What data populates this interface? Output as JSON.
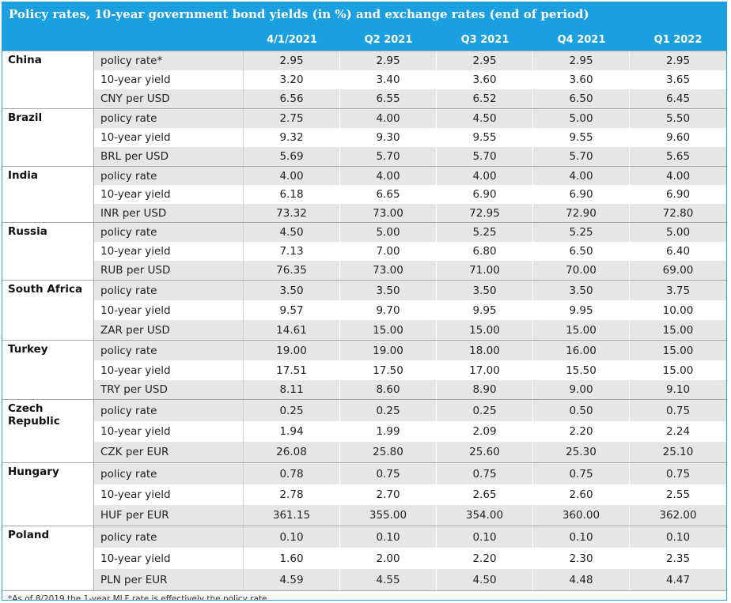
{
  "title": "Policy rates, 10-year government bond yields (in %) and exchange rates (end of period)",
  "columns": [
    "4/1/2021",
    "Q2 2021",
    "Q3 2021",
    "Q4 2021",
    "Q1 2022"
  ],
  "groups": [
    {
      "country": "China",
      "rows": [
        {
          "label": "policy rate*",
          "values": [
            "2.95",
            "2.95",
            "2.95",
            "2.95",
            "2.95"
          ]
        },
        {
          "label": "10-year yield",
          "values": [
            "3.20",
            "3.40",
            "3.60",
            "3.60",
            "3.65"
          ]
        },
        {
          "label": "CNY per USD",
          "values": [
            "6.56",
            "6.55",
            "6.52",
            "6.50",
            "6.45"
          ]
        }
      ]
    },
    {
      "country": "Brazil",
      "rows": [
        {
          "label": "policy rate",
          "values": [
            "2.75",
            "4.00",
            "4.50",
            "5.00",
            "5.50"
          ]
        },
        {
          "label": "10-year yield",
          "values": [
            "9.32",
            "9.30",
            "9.55",
            "9.55",
            "9.60"
          ]
        },
        {
          "label": "BRL per USD",
          "values": [
            "5.69",
            "5.70",
            "5.70",
            "5.70",
            "5.65"
          ]
        }
      ]
    },
    {
      "country": "India",
      "rows": [
        {
          "label": "policy rate",
          "values": [
            "4.00",
            "4.00",
            "4.00",
            "4.00",
            "4.00"
          ]
        },
        {
          "label": "10-year yield",
          "values": [
            "6.18",
            "6.65",
            "6.90",
            "6.90",
            "6.90"
          ]
        },
        {
          "label": "INR per USD",
          "values": [
            "73.32",
            "73.00",
            "72.95",
            "72.90",
            "72.80"
          ]
        }
      ]
    },
    {
      "country": "Russia",
      "rows": [
        {
          "label": "policy rate",
          "values": [
            "4.50",
            "5.00",
            "5.25",
            "5.25",
            "5.00"
          ]
        },
        {
          "label": "10-year yield",
          "values": [
            "7.13",
            "7.00",
            "6.80",
            "6.50",
            "6.40"
          ]
        },
        {
          "label": "RUB per USD",
          "values": [
            "76.35",
            "73.00",
            "71.00",
            "70.00",
            "69.00"
          ]
        }
      ]
    },
    {
      "country": "South Africa",
      "rows": [
        {
          "label": "policy rate",
          "values": [
            "3.50",
            "3.50",
            "3.50",
            "3.50",
            "3.75"
          ]
        },
        {
          "label": "10-year yield",
          "values": [
            "9.57",
            "9.70",
            "9.95",
            "9.95",
            "10.00"
          ]
        },
        {
          "label": "ZAR per USD",
          "values": [
            "14.61",
            "15.00",
            "15.00",
            "15.00",
            "15.00"
          ]
        }
      ]
    },
    {
      "country": "Turkey",
      "rows": [
        {
          "label": "policy rate",
          "values": [
            "19.00",
            "19.00",
            "18.00",
            "16.00",
            "15.00"
          ]
        },
        {
          "label": "10-year yield",
          "values": [
            "17.51",
            "17.50",
            "17.00",
            "15.50",
            "15.00"
          ]
        },
        {
          "label": "TRY per USD",
          "values": [
            "8.11",
            "8.60",
            "8.90",
            "9.00",
            "9.10"
          ]
        }
      ]
    },
    {
      "country": "Czech Republic",
      "rows": [
        {
          "label": "policy rate",
          "values": [
            "0.25",
            "0.25",
            "0.25",
            "0.50",
            "0.75"
          ]
        },
        {
          "label": "10-year yield",
          "values": [
            "1.94",
            "1.99",
            "2.09",
            "2.20",
            "2.24"
          ]
        },
        {
          "label": "CZK per EUR",
          "values": [
            "26.08",
            "25.80",
            "25.60",
            "25.30",
            "25.10"
          ]
        }
      ]
    },
    {
      "country": "Hungary",
      "rows": [
        {
          "label": "policy rate",
          "values": [
            "0.78",
            "0.75",
            "0.75",
            "0.75",
            "0.75"
          ]
        },
        {
          "label": "10-year yield",
          "values": [
            "2.78",
            "2.70",
            "2.65",
            "2.60",
            "2.55"
          ]
        },
        {
          "label": "HUF per EUR",
          "values": [
            "361.15",
            "355.00",
            "354.00",
            "360.00",
            "362.00"
          ]
        }
      ]
    },
    {
      "country": "Poland",
      "rows": [
        {
          "label": "policy rate",
          "values": [
            "0.10",
            "0.10",
            "0.10",
            "0.10",
            "0.10"
          ]
        },
        {
          "label": "10-year yield",
          "values": [
            "1.60",
            "2.00",
            "2.20",
            "2.30",
            "2.35"
          ]
        },
        {
          "label": "PLN per EUR",
          "values": [
            "4.59",
            "4.55",
            "4.50",
            "4.48",
            "4.47"
          ]
        }
      ]
    }
  ],
  "footnote": "*As of 8/2019 the 1-year MLF rate is effectively the policy rate",
  "colors": {
    "header_bg": "#1a9fe0",
    "shade": "#e6e6e6"
  }
}
